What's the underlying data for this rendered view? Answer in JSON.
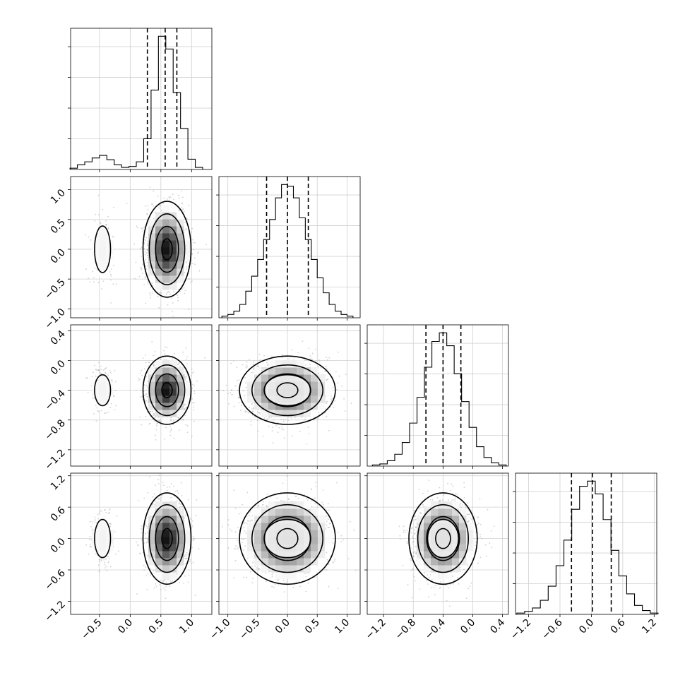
{
  "chart_data": {
    "type": "corner",
    "title": "",
    "grid": true,
    "quantile_lines": "dashed",
    "parameters": [
      {
        "label": "",
        "range": [
          -0.97,
          1.33
        ],
        "ticks": [
          -0.5,
          0.0,
          0.5,
          1.0
        ],
        "tick_labels": [
          "−0.5",
          "0.0",
          "0.5",
          "1.0"
        ],
        "quantiles": [
          0.28,
          0.57,
          0.76
        ]
      },
      {
        "label": "",
        "range": [
          -1.15,
          1.22
        ],
        "ticks": [
          -1.0,
          -0.5,
          0.0,
          0.5,
          1.0
        ],
        "tick_labels": [
          "−1.0",
          "−0.5",
          "0.0",
          "0.5",
          "1.0"
        ],
        "quantiles": [
          -0.35,
          0.0,
          0.35
        ]
      },
      {
        "label": "",
        "range": [
          -1.42,
          0.48
        ],
        "ticks": [
          -1.2,
          -0.8,
          -0.4,
          0.0,
          0.4
        ],
        "tick_labels": [
          "−1.2",
          "−0.8",
          "−0.4",
          "0.0",
          "0.4"
        ],
        "quantiles": [
          -0.63,
          -0.4,
          -0.16
        ]
      },
      {
        "label": "",
        "range": [
          -1.45,
          1.25
        ],
        "ticks": [
          -1.2,
          -0.6,
          0.0,
          0.6,
          1.2
        ],
        "tick_labels": [
          "−1.2",
          "−0.6",
          "0.0",
          "0.6",
          "1.2"
        ],
        "quantiles": [
          -0.38,
          0.02,
          0.38
        ]
      }
    ],
    "histograms": [
      {
        "parameter": 0,
        "bins": [
          -0.92,
          -0.8,
          -0.68,
          -0.56,
          -0.44,
          -0.32,
          -0.2,
          -0.08,
          0.04,
          0.16,
          0.28,
          0.4,
          0.52,
          0.64,
          0.76,
          0.88,
          1.0,
          1.12
        ],
        "counts": [
          5,
          18,
          30,
          45,
          55,
          38,
          18,
          8,
          12,
          30,
          120,
          310,
          520,
          470,
          300,
          160,
          40,
          8
        ]
      },
      {
        "parameter": 1,
        "bins": [
          -1.05,
          -0.95,
          -0.85,
          -0.75,
          -0.65,
          -0.55,
          -0.45,
          -0.35,
          -0.25,
          -0.15,
          -0.05,
          0.05,
          0.15,
          0.25,
          0.35,
          0.45,
          0.55,
          0.65,
          0.75,
          0.85,
          0.95,
          1.05
        ],
        "counts": [
          10,
          20,
          40,
          80,
          160,
          250,
          350,
          470,
          590,
          720,
          800,
          790,
          720,
          600,
          470,
          350,
          240,
          150,
          80,
          40,
          20,
          10
        ]
      },
      {
        "parameter": 2,
        "bins": [
          -1.3,
          -1.2,
          -1.1,
          -1.0,
          -0.9,
          -0.8,
          -0.7,
          -0.6,
          -0.5,
          -0.4,
          -0.3,
          -0.2,
          -0.1,
          0.0,
          0.1,
          0.2,
          0.3,
          0.4
        ],
        "counts": [
          5,
          10,
          25,
          55,
          110,
          200,
          320,
          460,
          580,
          620,
          560,
          430,
          300,
          180,
          90,
          40,
          15,
          5
        ]
      },
      {
        "parameter": 3,
        "bins": [
          -1.35,
          -1.2,
          -1.05,
          -0.9,
          -0.75,
          -0.6,
          -0.45,
          -0.3,
          -0.15,
          0.0,
          0.15,
          0.3,
          0.45,
          0.6,
          0.75,
          0.9,
          1.05,
          1.2
        ],
        "counts": [
          5,
          12,
          25,
          55,
          110,
          190,
          290,
          410,
          500,
          520,
          470,
          370,
          250,
          150,
          80,
          35,
          15,
          5
        ]
      }
    ],
    "density_2d": [
      {
        "x": 0,
        "y": 1,
        "x_tick_labels": true,
        "y_tick_labels": true
      },
      {
        "x": 0,
        "y": 2,
        "y_tick_labels": true
      },
      {
        "x": 1,
        "y": 2
      },
      {
        "x": 0,
        "y": 3,
        "x_tick_labels": true,
        "y_tick_labels": true
      },
      {
        "x": 1,
        "y": 3,
        "x_tick_labels": true
      },
      {
        "x": 2,
        "y": 3,
        "x_tick_labels": true
      }
    ],
    "components": [
      {
        "means": [
          -0.45,
          0.0,
          -0.4,
          0.0
        ],
        "sds": [
          0.1,
          0.3,
          0.16,
          0.28
        ],
        "weight": 0.12
      },
      {
        "means": [
          0.6,
          0.0,
          -0.4,
          0.0
        ],
        "sds": [
          0.17,
          0.35,
          0.2,
          0.38
        ],
        "weight": 0.88
      }
    ]
  }
}
